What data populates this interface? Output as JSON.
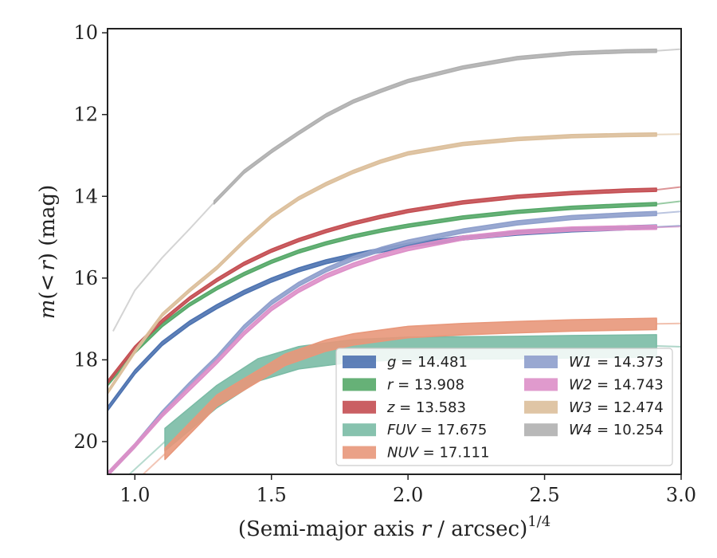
{
  "chart_data": {
    "type": "line",
    "title": "",
    "xlabel": "(Semi-major axis r / arcsec)",
    "xlabel_parts": {
      "pre": "(Semi-major axis ",
      "var": "r",
      "post": " / arcsec)",
      "sup": "1/4"
    },
    "ylabel_parts": {
      "m": "m",
      "open": "(",
      "lt": "<",
      "r": "r",
      "close": ") (mag)"
    },
    "xlim": [
      0.9,
      3.0
    ],
    "ylim": [
      20.8,
      9.9
    ],
    "y_inverted": true,
    "xticks": [
      1.0,
      1.5,
      2.0,
      2.5,
      3.0
    ],
    "xtick_labels": [
      "1.0",
      "1.5",
      "2.0",
      "2.5",
      "3.0"
    ],
    "yticks": [
      10,
      12,
      14,
      16,
      18,
      20
    ],
    "ytick_labels": [
      "10",
      "12",
      "14",
      "16",
      "18",
      "20"
    ],
    "grid": false,
    "legend_placement": "lower-right",
    "series": [
      {
        "name": "g",
        "value": "14.481",
        "color": "#4c72b0",
        "band": 0.1,
        "points": [
          [
            0.9,
            19.2
          ],
          [
            1.0,
            18.3
          ],
          [
            1.1,
            17.6
          ],
          [
            1.2,
            17.1
          ],
          [
            1.3,
            16.7
          ],
          [
            1.4,
            16.35
          ],
          [
            1.5,
            16.05
          ],
          [
            1.6,
            15.8
          ],
          [
            1.7,
            15.6
          ],
          [
            1.8,
            15.45
          ],
          [
            1.9,
            15.32
          ],
          [
            2.0,
            15.2
          ],
          [
            2.2,
            15.02
          ],
          [
            2.4,
            14.9
          ],
          [
            2.6,
            14.82
          ],
          [
            2.8,
            14.77
          ],
          [
            2.91,
            14.75
          ]
        ],
        "model": [
          [
            2.91,
            14.75
          ],
          [
            3.0,
            14.72
          ]
        ]
      },
      {
        "name": "r",
        "value": "13.908",
        "color": "#55a868",
        "band": 0.08,
        "points": [
          [
            0.9,
            18.6
          ],
          [
            1.0,
            17.8
          ],
          [
            1.1,
            17.15
          ],
          [
            1.2,
            16.65
          ],
          [
            1.3,
            16.25
          ],
          [
            1.4,
            15.9
          ],
          [
            1.5,
            15.6
          ],
          [
            1.6,
            15.35
          ],
          [
            1.7,
            15.15
          ],
          [
            1.8,
            14.98
          ],
          [
            1.9,
            14.84
          ],
          [
            2.0,
            14.72
          ],
          [
            2.2,
            14.52
          ],
          [
            2.4,
            14.38
          ],
          [
            2.6,
            14.28
          ],
          [
            2.8,
            14.22
          ],
          [
            2.91,
            14.19
          ]
        ],
        "model": [
          [
            2.91,
            14.19
          ],
          [
            3.0,
            14.12
          ]
        ]
      },
      {
        "name": "z",
        "value": "13.583",
        "color": "#c44e52",
        "band": 0.08,
        "points": [
          [
            0.9,
            18.55
          ],
          [
            1.0,
            17.7
          ],
          [
            1.1,
            17.05
          ],
          [
            1.2,
            16.5
          ],
          [
            1.3,
            16.05
          ],
          [
            1.4,
            15.65
          ],
          [
            1.5,
            15.33
          ],
          [
            1.6,
            15.07
          ],
          [
            1.7,
            14.85
          ],
          [
            1.8,
            14.66
          ],
          [
            1.9,
            14.5
          ],
          [
            2.0,
            14.36
          ],
          [
            2.2,
            14.15
          ],
          [
            2.4,
            14.01
          ],
          [
            2.6,
            13.92
          ],
          [
            2.8,
            13.86
          ],
          [
            2.91,
            13.84
          ]
        ],
        "model": [
          [
            2.91,
            13.84
          ],
          [
            3.0,
            13.77
          ]
        ]
      },
      {
        "name": "FUV",
        "value": "17.675",
        "color": "#7abba5",
        "band": 0.55,
        "points": [
          [
            1.11,
            19.95
          ],
          [
            1.3,
            18.9
          ],
          [
            1.45,
            18.25
          ],
          [
            1.6,
            17.95
          ],
          [
            1.8,
            17.78
          ],
          [
            2.0,
            17.72
          ],
          [
            2.4,
            17.7
          ],
          [
            2.6,
            17.68
          ],
          [
            2.91,
            17.66
          ]
        ],
        "model": [
          [
            2.91,
            17.66
          ],
          [
            3.0,
            17.68
          ]
        ],
        "extrap": [
          [
            0.98,
            20.8
          ],
          [
            1.11,
            20.0
          ]
        ]
      },
      {
        "name": "NUV",
        "value": "17.111",
        "color": "#e8977a",
        "band": 0.28,
        "points": [
          [
            1.11,
            20.3
          ],
          [
            1.3,
            19.0
          ],
          [
            1.45,
            18.4
          ],
          [
            1.55,
            18.0
          ],
          [
            1.7,
            17.65
          ],
          [
            1.8,
            17.5
          ],
          [
            2.0,
            17.32
          ],
          [
            2.2,
            17.25
          ],
          [
            2.4,
            17.2
          ],
          [
            2.6,
            17.16
          ],
          [
            2.91,
            17.12
          ]
        ],
        "model": [
          [
            2.91,
            17.12
          ],
          [
            3.0,
            17.11
          ]
        ],
        "extrap": [
          [
            1.03,
            20.8
          ],
          [
            1.11,
            20.3
          ]
        ]
      },
      {
        "name": "W1",
        "value": "14.373",
        "color": "#8e9fcc",
        "band": 0.1,
        "points": [
          [
            0.9,
            20.8
          ],
          [
            1.0,
            20.1
          ],
          [
            1.1,
            19.3
          ],
          [
            1.2,
            18.6
          ],
          [
            1.3,
            17.95
          ],
          [
            1.4,
            17.2
          ],
          [
            1.5,
            16.6
          ],
          [
            1.6,
            16.15
          ],
          [
            1.7,
            15.8
          ],
          [
            1.8,
            15.52
          ],
          [
            1.9,
            15.3
          ],
          [
            2.0,
            15.12
          ],
          [
            2.2,
            14.85
          ],
          [
            2.4,
            14.65
          ],
          [
            2.6,
            14.52
          ],
          [
            2.8,
            14.45
          ],
          [
            2.91,
            14.42
          ]
        ],
        "model": [
          [
            2.91,
            14.42
          ],
          [
            3.0,
            14.37
          ]
        ]
      },
      {
        "name": "W2",
        "value": "14.743",
        "color": "#dd8fc8",
        "band": 0.1,
        "points": [
          [
            0.9,
            20.8
          ],
          [
            1.0,
            20.1
          ],
          [
            1.1,
            19.35
          ],
          [
            1.2,
            18.7
          ],
          [
            1.3,
            18.05
          ],
          [
            1.4,
            17.35
          ],
          [
            1.5,
            16.75
          ],
          [
            1.6,
            16.3
          ],
          [
            1.7,
            15.95
          ],
          [
            1.8,
            15.68
          ],
          [
            1.9,
            15.46
          ],
          [
            2.0,
            15.28
          ],
          [
            2.2,
            15.02
          ],
          [
            2.4,
            14.88
          ],
          [
            2.6,
            14.8
          ],
          [
            2.8,
            14.77
          ],
          [
            2.91,
            14.76
          ]
        ],
        "model": [
          [
            2.91,
            14.76
          ],
          [
            3.0,
            14.74
          ]
        ]
      },
      {
        "name": "W3",
        "value": "12.474",
        "color": "#dcbf9b",
        "band": 0.08,
        "points": [
          [
            0.9,
            18.8
          ],
          [
            1.0,
            17.8
          ],
          [
            1.1,
            16.9
          ],
          [
            1.2,
            16.3
          ],
          [
            1.3,
            15.75
          ],
          [
            1.4,
            15.1
          ],
          [
            1.5,
            14.5
          ],
          [
            1.6,
            14.05
          ],
          [
            1.7,
            13.7
          ],
          [
            1.8,
            13.4
          ],
          [
            1.9,
            13.15
          ],
          [
            2.0,
            12.95
          ],
          [
            2.2,
            12.72
          ],
          [
            2.4,
            12.6
          ],
          [
            2.6,
            12.53
          ],
          [
            2.8,
            12.5
          ],
          [
            2.91,
            12.49
          ]
        ],
        "model": [
          [
            2.91,
            12.49
          ],
          [
            3.0,
            12.48
          ]
        ]
      },
      {
        "name": "W4",
        "value": "10.254",
        "color": "#b0b0b0",
        "band": 0.08,
        "points": [
          [
            1.29,
            14.15
          ],
          [
            1.4,
            13.4
          ],
          [
            1.5,
            12.9
          ],
          [
            1.6,
            12.45
          ],
          [
            1.7,
            12.02
          ],
          [
            1.8,
            11.68
          ],
          [
            1.9,
            11.42
          ],
          [
            2.0,
            11.18
          ],
          [
            2.2,
            10.85
          ],
          [
            2.4,
            10.62
          ],
          [
            2.6,
            10.5
          ],
          [
            2.8,
            10.45
          ],
          [
            2.91,
            10.44
          ]
        ],
        "model": [
          [
            2.91,
            10.44
          ],
          [
            3.0,
            10.4
          ]
        ],
        "extrap": [
          [
            0.92,
            17.3
          ],
          [
            1.0,
            16.3
          ],
          [
            1.1,
            15.5
          ],
          [
            1.2,
            14.8
          ],
          [
            1.29,
            14.15
          ]
        ]
      }
    ],
    "legend_columns": [
      [
        "g",
        "r",
        "z",
        "FUV",
        "NUV"
      ],
      [
        "W1",
        "W2",
        "W3",
        "W4"
      ]
    ]
  }
}
